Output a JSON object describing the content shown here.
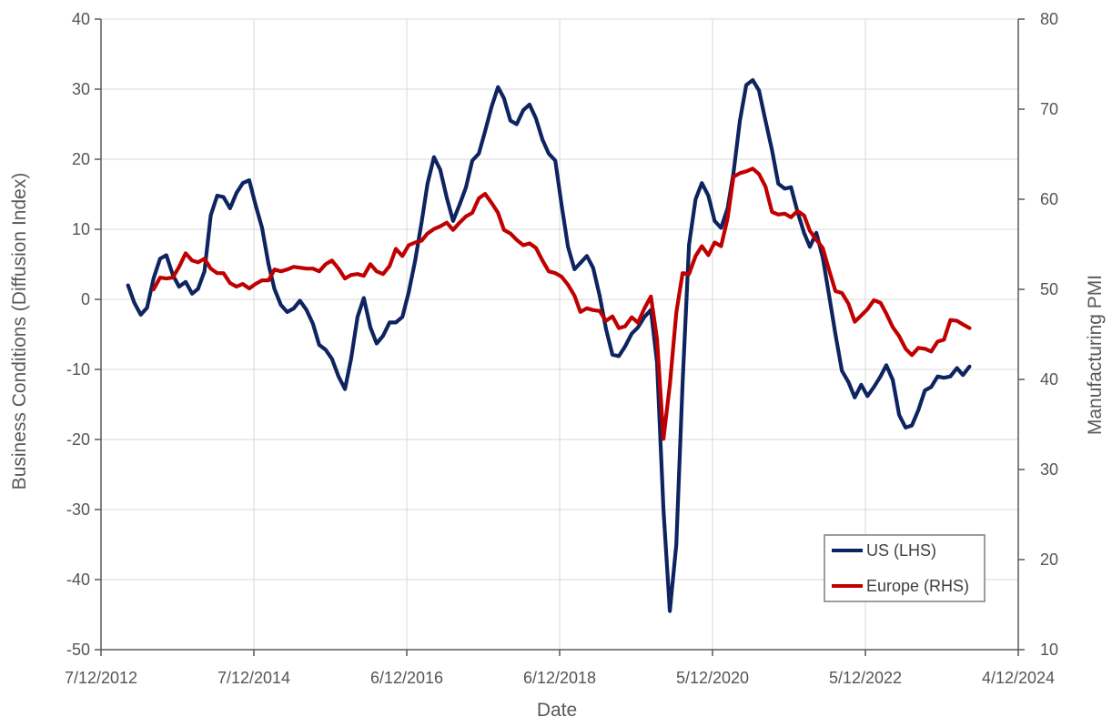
{
  "chart_data": {
    "type": "line",
    "title": "",
    "xlabel": "Date",
    "ylabel": "Business Conditions (Diffusion Index)",
    "y2label": "Manufacturing PMI",
    "xlim": [
      "2012-12-07",
      "2024-12-04"
    ],
    "ylim": [
      -50,
      40
    ],
    "y2lim": [
      10,
      80
    ],
    "grid": true,
    "legend_position": "bottom-right",
    "x_ticks": [
      "7/12/2012",
      "7/12/2014",
      "6/12/2016",
      "6/12/2018",
      "5/12/2020",
      "5/12/2022",
      "4/12/2024"
    ],
    "y_ticks": [
      -50,
      -40,
      -30,
      -20,
      -10,
      0,
      10,
      20,
      30,
      40
    ],
    "y2_ticks": [
      10,
      20,
      30,
      40,
      50,
      60,
      70,
      80
    ],
    "series": [
      {
        "name": "US (LHS)",
        "axis": "left",
        "color": "#0d2460",
        "points": [
          [
            "2013-04-15",
            2.0
          ],
          [
            "2013-05-15",
            -0.5
          ],
          [
            "2013-06-15",
            -2.2
          ],
          [
            "2013-07-15",
            -1.2
          ],
          [
            "2013-08-15",
            3.0
          ],
          [
            "2013-09-15",
            5.8
          ],
          [
            "2013-10-15",
            6.3
          ],
          [
            "2013-11-15",
            3.5
          ],
          [
            "2013-12-15",
            1.8
          ],
          [
            "2014-01-15",
            2.5
          ],
          [
            "2014-02-15",
            0.8
          ],
          [
            "2014-03-15",
            1.5
          ],
          [
            "2014-04-15",
            4.0
          ],
          [
            "2014-05-15",
            12.0
          ],
          [
            "2014-06-15",
            14.8
          ],
          [
            "2014-07-15",
            14.6
          ],
          [
            "2014-08-15",
            13.0
          ],
          [
            "2014-09-15",
            15.2
          ],
          [
            "2014-10-15",
            16.6
          ],
          [
            "2014-11-15",
            17.0
          ],
          [
            "2014-12-15",
            13.5
          ],
          [
            "2015-01-15",
            10.2
          ],
          [
            "2015-02-15",
            5.0
          ],
          [
            "2015-03-15",
            1.5
          ],
          [
            "2015-04-15",
            -0.8
          ],
          [
            "2015-05-15",
            -1.8
          ],
          [
            "2015-06-15",
            -1.3
          ],
          [
            "2015-07-15",
            -0.2
          ],
          [
            "2015-08-15",
            -1.5
          ],
          [
            "2015-09-15",
            -3.5
          ],
          [
            "2015-10-15",
            -6.5
          ],
          [
            "2015-11-15",
            -7.2
          ],
          [
            "2015-12-15",
            -8.5
          ],
          [
            "2016-01-15",
            -11.0
          ],
          [
            "2016-02-15",
            -12.8
          ],
          [
            "2016-03-15",
            -8.5
          ],
          [
            "2016-04-15",
            -2.5
          ],
          [
            "2016-05-15",
            0.2
          ],
          [
            "2016-06-15",
            -4.0
          ],
          [
            "2016-07-15",
            -6.3
          ],
          [
            "2016-08-15",
            -5.2
          ],
          [
            "2016-09-15",
            -3.3
          ],
          [
            "2016-10-15",
            -3.3
          ],
          [
            "2016-11-15",
            -2.5
          ],
          [
            "2016-12-15",
            1.0
          ],
          [
            "2017-01-15",
            5.5
          ],
          [
            "2017-02-15",
            11.0
          ],
          [
            "2017-03-15",
            16.5
          ],
          [
            "2017-04-15",
            20.3
          ],
          [
            "2017-05-15",
            18.5
          ],
          [
            "2017-06-15",
            14.5
          ],
          [
            "2017-07-15",
            11.2
          ],
          [
            "2017-08-15",
            13.5
          ],
          [
            "2017-09-15",
            16.0
          ],
          [
            "2017-10-15",
            19.8
          ],
          [
            "2017-11-15",
            20.8
          ],
          [
            "2017-12-15",
            24.0
          ],
          [
            "2018-01-15",
            27.5
          ],
          [
            "2018-02-15",
            30.3
          ],
          [
            "2018-03-15",
            28.7
          ],
          [
            "2018-04-15",
            25.5
          ],
          [
            "2018-05-15",
            25.0
          ],
          [
            "2018-06-15",
            27.0
          ],
          [
            "2018-07-15",
            27.8
          ],
          [
            "2018-08-15",
            25.8
          ],
          [
            "2018-09-15",
            22.8
          ],
          [
            "2018-10-15",
            20.8
          ],
          [
            "2018-11-15",
            19.8
          ],
          [
            "2018-12-15",
            13.5
          ],
          [
            "2019-01-15",
            7.5
          ],
          [
            "2019-02-15",
            4.3
          ],
          [
            "2019-03-15",
            5.2
          ],
          [
            "2019-04-15",
            6.2
          ],
          [
            "2019-05-15",
            4.5
          ],
          [
            "2019-06-15",
            0.5
          ],
          [
            "2019-07-15",
            -4.2
          ],
          [
            "2019-08-15",
            -7.9
          ],
          [
            "2019-09-15",
            -8.1
          ],
          [
            "2019-10-15",
            -6.7
          ],
          [
            "2019-11-15",
            -4.9
          ],
          [
            "2019-12-15",
            -4.0
          ],
          [
            "2020-01-15",
            -2.5
          ],
          [
            "2020-02-15",
            -1.5
          ],
          [
            "2020-03-15",
            -9.0
          ],
          [
            "2020-04-15",
            -30.0
          ],
          [
            "2020-05-15",
            -44.5
          ],
          [
            "2020-06-15",
            -35.0
          ],
          [
            "2020-07-15",
            -12.0
          ],
          [
            "2020-08-15",
            7.8
          ],
          [
            "2020-09-15",
            14.3
          ],
          [
            "2020-10-15",
            16.6
          ],
          [
            "2020-11-15",
            14.8
          ],
          [
            "2020-12-15",
            11.2
          ],
          [
            "2021-01-15",
            10.2
          ],
          [
            "2021-02-15",
            13.0
          ],
          [
            "2021-03-15",
            18.0
          ],
          [
            "2021-04-15",
            25.5
          ],
          [
            "2021-05-15",
            30.6
          ],
          [
            "2021-06-15",
            31.3
          ],
          [
            "2021-07-15",
            29.8
          ],
          [
            "2021-08-15",
            25.5
          ],
          [
            "2021-09-15",
            21.3
          ],
          [
            "2021-10-15",
            16.5
          ],
          [
            "2021-11-15",
            15.8
          ],
          [
            "2021-12-15",
            16.0
          ],
          [
            "2022-01-15",
            12.5
          ],
          [
            "2022-02-15",
            9.5
          ],
          [
            "2022-03-15",
            7.5
          ],
          [
            "2022-04-15",
            9.5
          ],
          [
            "2022-05-15",
            6.0
          ],
          [
            "2022-06-15",
            0.5
          ],
          [
            "2022-07-15",
            -5.0
          ],
          [
            "2022-08-15",
            -10.2
          ],
          [
            "2022-09-15",
            -11.8
          ],
          [
            "2022-10-15",
            -14.0
          ],
          [
            "2022-11-15",
            -12.2
          ],
          [
            "2022-12-15",
            -13.8
          ],
          [
            "2023-01-15",
            -12.5
          ],
          [
            "2023-02-15",
            -11.0
          ],
          [
            "2023-03-15",
            -9.4
          ],
          [
            "2023-04-15",
            -11.5
          ],
          [
            "2023-05-15",
            -16.5
          ],
          [
            "2023-06-15",
            -18.3
          ],
          [
            "2023-07-15",
            -18.0
          ],
          [
            "2023-08-15",
            -15.8
          ],
          [
            "2023-09-15",
            -13.0
          ],
          [
            "2023-10-15",
            -12.5
          ],
          [
            "2023-11-15",
            -11.0
          ],
          [
            "2023-12-15",
            -11.2
          ],
          [
            "2024-01-15",
            -11.0
          ],
          [
            "2024-02-15",
            -9.8
          ],
          [
            "2024-03-15",
            -10.8
          ],
          [
            "2024-04-15",
            -9.6
          ]
        ]
      },
      {
        "name": "Europe (RHS)",
        "axis": "right",
        "color": "#c00000",
        "points": [
          [
            "2013-08-15",
            50.0
          ],
          [
            "2013-09-15",
            51.3
          ],
          [
            "2013-10-15",
            51.2
          ],
          [
            "2013-11-15",
            51.3
          ],
          [
            "2013-12-15",
            52.5
          ],
          [
            "2014-01-15",
            54.0
          ],
          [
            "2014-02-15",
            53.2
          ],
          [
            "2014-03-15",
            53.0
          ],
          [
            "2014-04-15",
            53.4
          ],
          [
            "2014-05-15",
            52.3
          ],
          [
            "2014-06-15",
            51.8
          ],
          [
            "2014-07-15",
            51.8
          ],
          [
            "2014-08-15",
            50.7
          ],
          [
            "2014-09-15",
            50.3
          ],
          [
            "2014-10-15",
            50.6
          ],
          [
            "2014-11-15",
            50.1
          ],
          [
            "2014-12-15",
            50.6
          ],
          [
            "2015-01-15",
            51.0
          ],
          [
            "2015-02-15",
            51.0
          ],
          [
            "2015-03-15",
            52.2
          ],
          [
            "2015-04-15",
            52.0
          ],
          [
            "2015-05-15",
            52.2
          ],
          [
            "2015-06-15",
            52.5
          ],
          [
            "2015-07-15",
            52.4
          ],
          [
            "2015-08-15",
            52.3
          ],
          [
            "2015-09-15",
            52.3
          ],
          [
            "2015-10-15",
            52.0
          ],
          [
            "2015-11-15",
            52.8
          ],
          [
            "2015-12-15",
            53.2
          ],
          [
            "2016-01-15",
            52.3
          ],
          [
            "2016-02-15",
            51.2
          ],
          [
            "2016-03-15",
            51.6
          ],
          [
            "2016-04-15",
            51.7
          ],
          [
            "2016-05-15",
            51.5
          ],
          [
            "2016-06-15",
            52.8
          ],
          [
            "2016-07-15",
            52.0
          ],
          [
            "2016-08-15",
            51.7
          ],
          [
            "2016-09-15",
            52.6
          ],
          [
            "2016-10-15",
            54.5
          ],
          [
            "2016-11-15",
            53.7
          ],
          [
            "2016-12-15",
            54.9
          ],
          [
            "2017-01-15",
            55.2
          ],
          [
            "2017-02-15",
            55.4
          ],
          [
            "2017-03-15",
            56.2
          ],
          [
            "2017-04-15",
            56.7
          ],
          [
            "2017-05-15",
            57.0
          ],
          [
            "2017-06-15",
            57.4
          ],
          [
            "2017-07-15",
            56.6
          ],
          [
            "2017-08-15",
            57.4
          ],
          [
            "2017-09-15",
            58.1
          ],
          [
            "2017-10-15",
            58.5
          ],
          [
            "2017-11-15",
            60.1
          ],
          [
            "2017-12-15",
            60.6
          ],
          [
            "2018-01-15",
            59.6
          ],
          [
            "2018-02-15",
            58.5
          ],
          [
            "2018-03-15",
            56.6
          ],
          [
            "2018-04-15",
            56.2
          ],
          [
            "2018-05-15",
            55.5
          ],
          [
            "2018-06-15",
            54.9
          ],
          [
            "2018-07-15",
            55.1
          ],
          [
            "2018-08-15",
            54.6
          ],
          [
            "2018-09-15",
            53.2
          ],
          [
            "2018-10-15",
            52.0
          ],
          [
            "2018-11-15",
            51.8
          ],
          [
            "2018-12-15",
            51.4
          ],
          [
            "2019-01-15",
            50.5
          ],
          [
            "2019-02-15",
            49.3
          ],
          [
            "2019-03-15",
            47.5
          ],
          [
            "2019-04-15",
            47.9
          ],
          [
            "2019-05-15",
            47.7
          ],
          [
            "2019-06-15",
            47.6
          ],
          [
            "2019-07-15",
            46.5
          ],
          [
            "2019-08-15",
            47.0
          ],
          [
            "2019-09-15",
            45.7
          ],
          [
            "2019-10-15",
            45.9
          ],
          [
            "2019-11-15",
            46.9
          ],
          [
            "2019-12-15",
            46.3
          ],
          [
            "2020-01-15",
            47.9
          ],
          [
            "2020-02-15",
            49.2
          ],
          [
            "2020-03-15",
            44.5
          ],
          [
            "2020-04-15",
            33.4
          ],
          [
            "2020-05-15",
            39.4
          ],
          [
            "2020-06-15",
            47.4
          ],
          [
            "2020-07-15",
            51.8
          ],
          [
            "2020-08-15",
            51.7
          ],
          [
            "2020-09-15",
            53.7
          ],
          [
            "2020-10-15",
            54.8
          ],
          [
            "2020-11-15",
            53.8
          ],
          [
            "2020-12-15",
            55.2
          ],
          [
            "2021-01-15",
            54.8
          ],
          [
            "2021-02-15",
            57.9
          ],
          [
            "2021-03-15",
            62.5
          ],
          [
            "2021-04-15",
            62.9
          ],
          [
            "2021-05-15",
            63.1
          ],
          [
            "2021-06-15",
            63.4
          ],
          [
            "2021-07-15",
            62.8
          ],
          [
            "2021-08-15",
            61.4
          ],
          [
            "2021-09-15",
            58.6
          ],
          [
            "2021-10-15",
            58.3
          ],
          [
            "2021-11-15",
            58.4
          ],
          [
            "2021-12-15",
            58.0
          ],
          [
            "2022-01-15",
            58.7
          ],
          [
            "2022-02-15",
            58.2
          ],
          [
            "2022-03-15",
            56.5
          ],
          [
            "2022-04-15",
            55.5
          ],
          [
            "2022-05-15",
            54.6
          ],
          [
            "2022-06-15",
            52.1
          ],
          [
            "2022-07-15",
            49.8
          ],
          [
            "2022-08-15",
            49.6
          ],
          [
            "2022-09-15",
            48.4
          ],
          [
            "2022-10-15",
            46.4
          ],
          [
            "2022-11-15",
            47.1
          ],
          [
            "2022-12-15",
            47.8
          ],
          [
            "2023-01-15",
            48.8
          ],
          [
            "2023-02-15",
            48.5
          ],
          [
            "2023-03-15",
            47.3
          ],
          [
            "2023-04-15",
            45.8
          ],
          [
            "2023-05-15",
            44.8
          ],
          [
            "2023-06-15",
            43.4
          ],
          [
            "2023-07-15",
            42.7
          ],
          [
            "2023-08-15",
            43.5
          ],
          [
            "2023-09-15",
            43.4
          ],
          [
            "2023-10-15",
            43.1
          ],
          [
            "2023-11-15",
            44.2
          ],
          [
            "2023-12-15",
            44.4
          ],
          [
            "2024-01-15",
            46.6
          ],
          [
            "2024-02-15",
            46.5
          ],
          [
            "2024-03-15",
            46.1
          ],
          [
            "2024-04-15",
            45.7
          ]
        ]
      }
    ]
  }
}
